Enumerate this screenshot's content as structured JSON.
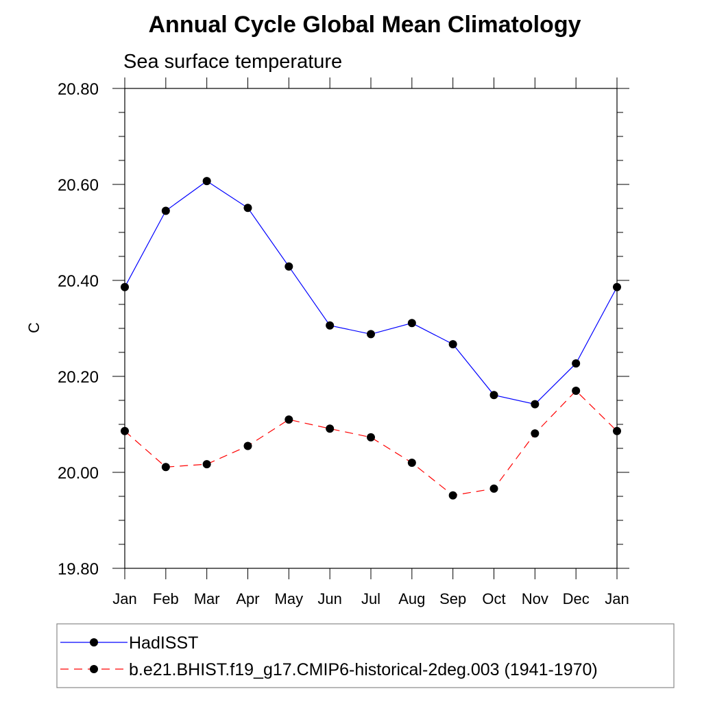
{
  "chart_data": {
    "type": "line",
    "title": "Annual Cycle Global Mean Climatology",
    "subtitle": "Sea surface temperature",
    "xlabel": "",
    "ylabel": "C",
    "categories": [
      "Jan",
      "Feb",
      "Mar",
      "Apr",
      "May",
      "Jun",
      "Jul",
      "Aug",
      "Sep",
      "Oct",
      "Nov",
      "Dec",
      "Jan"
    ],
    "ylim": [
      19.8,
      20.8
    ],
    "yticks": [
      "20.80",
      "20.60",
      "20.40",
      "20.20",
      "20.00",
      "19.80"
    ],
    "ytick_values": [
      20.8,
      20.6,
      20.4,
      20.2,
      20.0,
      19.8
    ],
    "series": [
      {
        "name": "HadISST",
        "color": "#0000ff",
        "dash": "solid",
        "values": [
          20.386,
          20.545,
          20.607,
          20.551,
          20.429,
          20.306,
          20.288,
          20.311,
          20.267,
          20.161,
          20.142,
          20.227,
          20.386
        ]
      },
      {
        "name": "b.e21.BHIST.f19_g17.CMIP6-historical-2deg.003 (1941-1970)",
        "color": "#ff0000",
        "dash": "dashed",
        "values": [
          20.086,
          20.011,
          20.017,
          20.055,
          20.11,
          20.091,
          20.073,
          20.02,
          19.952,
          19.966,
          20.081,
          20.17,
          20.086
        ]
      }
    ],
    "legend_position": "bottom",
    "grid": false
  }
}
